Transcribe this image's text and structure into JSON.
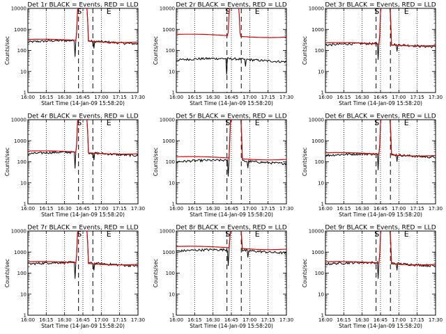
{
  "figure": {
    "xlabel": "Start Time (14-Jan-09 15:58:20)",
    "ylabel": "Counts/sec"
  },
  "chart_data": [
    {
      "type": "line",
      "title": "Det 1r BLACK = Events, RED = LLD",
      "x_ticks": [
        "16:00",
        "16:15",
        "16:30",
        "16:45",
        "17:00",
        "17:15",
        "17:30"
      ],
      "y_ticks": [
        "1",
        "10",
        "100",
        "1000",
        "10000"
      ],
      "yscale": "log",
      "ylim": [
        1,
        10000
      ],
      "x_range_min": [
        0,
        100
      ],
      "dashed_lines_min": [
        46,
        59
      ],
      "markers": [
        "S",
        "E"
      ],
      "peak_range_min": [
        44,
        55
      ],
      "series": [
        {
          "name": "BLACK",
          "color": "#000000",
          "base": 250,
          "peak": 10000
        },
        {
          "name": "RED",
          "color": "#dd0000",
          "base": 290,
          "peak": 10000
        }
      ]
    },
    {
      "type": "line",
      "title": "Det 2r BLACK = Events, RED = LLD",
      "x_ticks": [
        "16:00",
        "16:15",
        "16:30",
        "16:45",
        "17:00",
        "17:15",
        "17:30"
      ],
      "y_ticks": [
        "1",
        "10",
        "100",
        "1000",
        "10000"
      ],
      "yscale": "log",
      "ylim": [
        1,
        10000
      ],
      "x_range_min": [
        0,
        100
      ],
      "dashed_lines_min": [
        46,
        59
      ],
      "markers": [
        "S",
        "E"
      ],
      "peak_range_min": [
        47,
        58
      ],
      "series": [
        {
          "name": "BLACK",
          "color": "#000000",
          "base": 35,
          "peak": 35
        },
        {
          "name": "RED",
          "color": "#dd0000",
          "base": 500,
          "peak": 10000
        }
      ]
    },
    {
      "type": "line",
      "title": "Det 3r BLACK = Events, RED = LLD",
      "x_ticks": [
        "16:00",
        "16:15",
        "16:30",
        "16:45",
        "17:00",
        "17:15",
        "17:30"
      ],
      "y_ticks": [
        "1",
        "10",
        "100",
        "1000",
        "10000"
      ],
      "yscale": "log",
      "ylim": [
        1,
        10000
      ],
      "x_range_min": [
        0,
        100
      ],
      "dashed_lines_min": [
        46,
        59
      ],
      "markers": [
        "S",
        "E"
      ],
      "peak_range_min": [
        49,
        60
      ],
      "series": [
        {
          "name": "BLACK",
          "color": "#000000",
          "base": 180,
          "peak": 10000
        },
        {
          "name": "RED",
          "color": "#dd0000",
          "base": 200,
          "peak": 10000
        }
      ]
    },
    {
      "type": "line",
      "title": "Det 4r BLACK = Events, RED = LLD",
      "x_ticks": [
        "16:00",
        "16:15",
        "16:30",
        "16:45",
        "17:00",
        "17:15",
        "17:30"
      ],
      "y_ticks": [
        "1",
        "10",
        "100",
        "1000",
        "10000"
      ],
      "yscale": "log",
      "ylim": [
        1,
        10000
      ],
      "x_range_min": [
        0,
        100
      ],
      "dashed_lines_min": [
        46,
        59
      ],
      "markers": [
        "S",
        "E"
      ],
      "peak_range_min": [
        44,
        55
      ],
      "series": [
        {
          "name": "BLACK",
          "color": "#000000",
          "base": 240,
          "peak": 10000
        },
        {
          "name": "RED",
          "color": "#dd0000",
          "base": 280,
          "peak": 10000
        }
      ]
    },
    {
      "type": "line",
      "title": "Det 5r BLACK = Events, RED = LLD",
      "x_ticks": [
        "16:00",
        "16:15",
        "16:30",
        "16:45",
        "17:00",
        "17:15",
        "17:30"
      ],
      "y_ticks": [
        "1",
        "10",
        "100",
        "1000",
        "10000"
      ],
      "yscale": "log",
      "ylim": [
        1,
        10000
      ],
      "x_range_min": [
        0,
        100
      ],
      "dashed_lines_min": [
        46,
        59
      ],
      "markers": [
        "S",
        "E"
      ],
      "peak_range_min": [
        48,
        60
      ],
      "series": [
        {
          "name": "BLACK",
          "color": "#000000",
          "base": 100,
          "peak": 10000
        },
        {
          "name": "RED",
          "color": "#dd0000",
          "base": 150,
          "peak": 10000
        }
      ]
    },
    {
      "type": "line",
      "title": "Det 6r BLACK = Events, RED = LLD",
      "x_ticks": [
        "16:00",
        "16:15",
        "16:30",
        "16:45",
        "17:00",
        "17:15",
        "17:30"
      ],
      "y_ticks": [
        "1",
        "10",
        "100",
        "1000",
        "10000"
      ],
      "yscale": "log",
      "ylim": [
        1,
        10000
      ],
      "x_range_min": [
        0,
        100
      ],
      "dashed_lines_min": [
        46,
        59
      ],
      "markers": [
        "S",
        "E"
      ],
      "peak_range_min": [
        49,
        60
      ],
      "series": [
        {
          "name": "BLACK",
          "color": "#000000",
          "base": 200,
          "peak": 10000
        },
        {
          "name": "RED",
          "color": "#dd0000",
          "base": 230,
          "peak": 10000
        }
      ]
    },
    {
      "type": "line",
      "title": "Det 7r BLACK = Events, RED = LLD",
      "x_ticks": [
        "16:00",
        "16:15",
        "16:30",
        "16:45",
        "17:00",
        "17:15",
        "17:30"
      ],
      "y_ticks": [
        "1",
        "10",
        "100",
        "1000",
        "10000"
      ],
      "yscale": "log",
      "ylim": [
        1,
        10000
      ],
      "x_range_min": [
        0,
        100
      ],
      "dashed_lines_min": [
        46,
        59
      ],
      "markers": [
        "S",
        "E"
      ],
      "peak_range_min": [
        44,
        55
      ],
      "series": [
        {
          "name": "BLACK",
          "color": "#000000",
          "base": 270,
          "peak": 10000
        },
        {
          "name": "RED",
          "color": "#dd0000",
          "base": 300,
          "peak": 10000
        }
      ]
    },
    {
      "type": "line",
      "title": "Det 8r BLACK = Events, RED = LLD",
      "x_ticks": [
        "16:00",
        "16:15",
        "16:30",
        "16:45",
        "17:00",
        "17:15",
        "17:30"
      ],
      "y_ticks": [
        "1",
        "10",
        "100",
        "1000",
        "10000"
      ],
      "yscale": "log",
      "ylim": [
        1,
        10000
      ],
      "x_range_min": [
        0,
        100
      ],
      "dashed_lines_min": [
        46,
        59
      ],
      "markers": [
        "S",
        "E"
      ],
      "peak_range_min": [
        48,
        60
      ],
      "series": [
        {
          "name": "BLACK",
          "color": "#000000",
          "base": 1100,
          "peak": 10000
        },
        {
          "name": "RED",
          "color": "#dd0000",
          "base": 1600,
          "peak": 10000
        }
      ]
    },
    {
      "type": "line",
      "title": "Det 9r BLACK = Events, RED = LLD",
      "x_ticks": [
        "16:00",
        "16:15",
        "16:30",
        "16:45",
        "17:00",
        "17:15",
        "17:30"
      ],
      "y_ticks": [
        "1",
        "10",
        "100",
        "1000",
        "10000"
      ],
      "yscale": "log",
      "ylim": [
        1,
        10000
      ],
      "x_range_min": [
        0,
        100
      ],
      "dashed_lines_min": [
        46,
        59
      ],
      "markers": [
        "S",
        "E"
      ],
      "peak_range_min": [
        49,
        60
      ],
      "series": [
        {
          "name": "BLACK",
          "color": "#000000",
          "base": 270,
          "peak": 10000
        },
        {
          "name": "RED",
          "color": "#dd0000",
          "base": 300,
          "peak": 10000
        }
      ]
    }
  ]
}
